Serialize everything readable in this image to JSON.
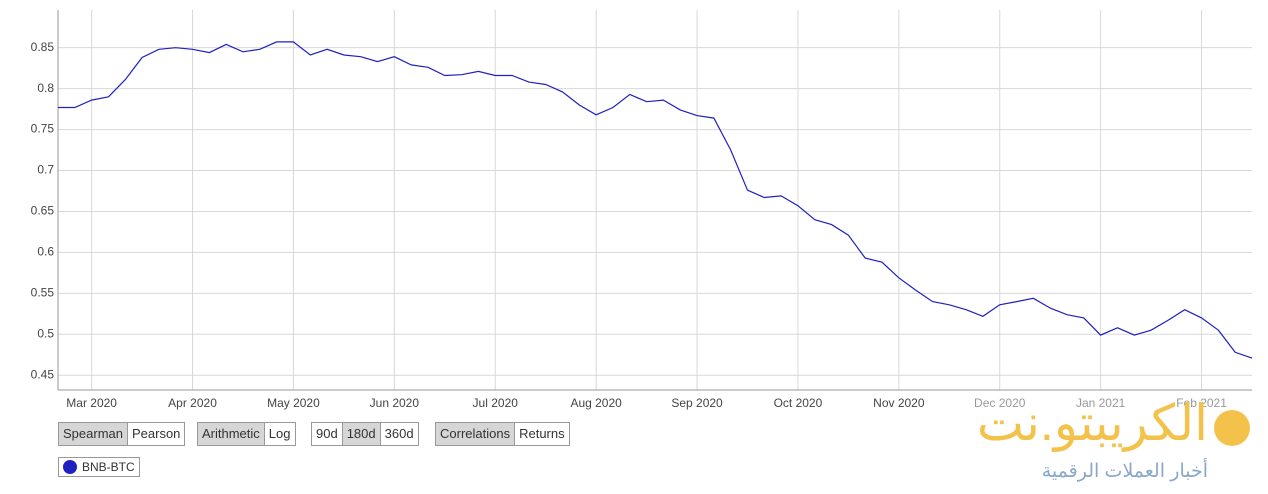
{
  "chart_data": {
    "type": "line",
    "categories": [
      null,
      null,
      "Mar 2020",
      null,
      null,
      null,
      null,
      null,
      "Apr 2020",
      null,
      null,
      null,
      null,
      null,
      "May 2020",
      null,
      null,
      null,
      null,
      null,
      "Jun 2020",
      null,
      null,
      null,
      null,
      null,
      "Jul 2020",
      null,
      null,
      null,
      null,
      null,
      "Aug 2020",
      null,
      null,
      null,
      null,
      null,
      "Sep 2020",
      null,
      null,
      null,
      null,
      null,
      "Oct 2020",
      null,
      null,
      null,
      null,
      null,
      "Nov 2020",
      null,
      null,
      null,
      null,
      null,
      "Dec 2020",
      null,
      null,
      null,
      null,
      null,
      "Jan 2021",
      null,
      null,
      null,
      null,
      null,
      "Feb 2021",
      null,
      null,
      null
    ],
    "series": [
      {
        "name": "BNB-BTC",
        "color": "#2020c0",
        "values": [
          0.777,
          0.777,
          0.786,
          0.79,
          0.811,
          0.838,
          0.848,
          0.85,
          0.848,
          0.844,
          0.854,
          0.845,
          0.848,
          0.857,
          0.857,
          0.841,
          0.848,
          0.841,
          0.839,
          0.833,
          0.839,
          0.829,
          0.826,
          0.816,
          0.817,
          0.821,
          0.816,
          0.816,
          0.808,
          0.805,
          0.796,
          0.78,
          0.768,
          0.777,
          0.793,
          0.784,
          0.786,
          0.774,
          0.767,
          0.764,
          0.725,
          0.676,
          0.667,
          0.669,
          0.657,
          0.64,
          0.634,
          0.621,
          0.593,
          0.588,
          0.569,
          0.554,
          0.54,
          0.536,
          0.53,
          0.522,
          0.536,
          0.54,
          0.544,
          0.532,
          0.524,
          0.52,
          0.499,
          0.508,
          0.499,
          0.505,
          0.517,
          0.53,
          0.52,
          0.505,
          0.478,
          0.471
        ]
      }
    ],
    "ylim": [
      0.432,
      0.896
    ],
    "yticks": [
      0.45,
      0.5,
      0.55,
      0.6,
      0.65,
      0.7,
      0.75,
      0.8,
      0.85
    ],
    "grid": true
  },
  "controls": [
    [
      {
        "label": "Spearman",
        "active": true
      },
      {
        "label": "Pearson",
        "active": false
      }
    ],
    [
      {
        "label": "Arithmetic",
        "active": true
      },
      {
        "label": "Log",
        "active": false
      }
    ],
    [
      {
        "label": "90d",
        "active": false
      },
      {
        "label": "180d",
        "active": true
      },
      {
        "label": "360d",
        "active": false
      }
    ],
    [
      {
        "label": "Correlations",
        "active": true
      },
      {
        "label": "Returns",
        "active": false
      }
    ]
  ],
  "logo": {
    "title": "الكريبتو.نت",
    "subtitle": "أخبار العملات الرقمية"
  }
}
